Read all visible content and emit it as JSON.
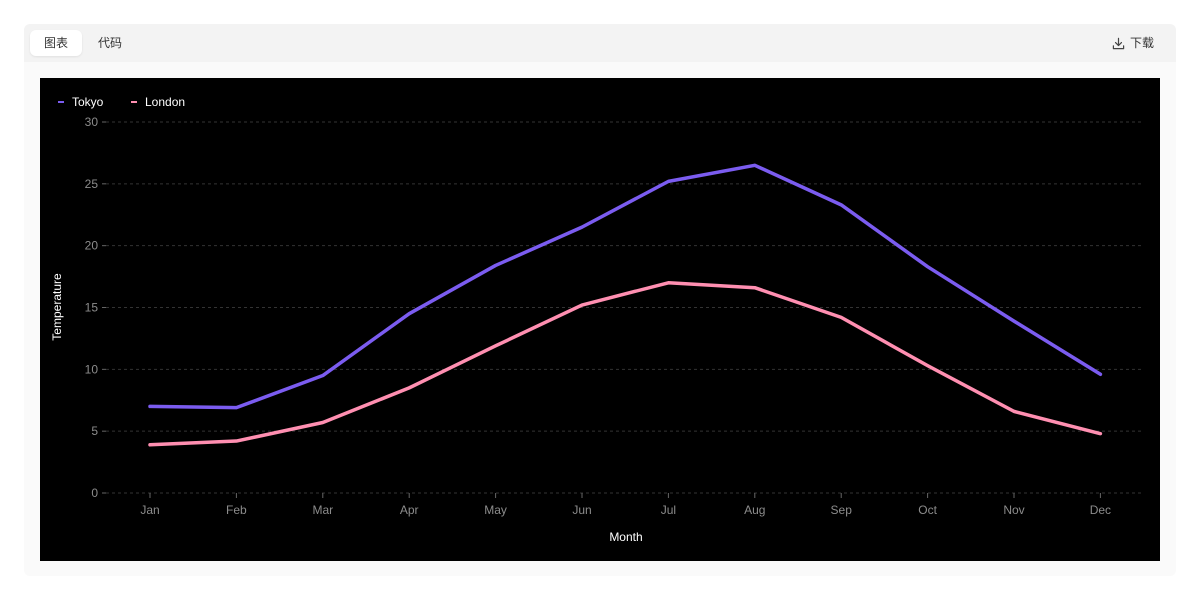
{
  "tabs": [
    {
      "label": "图表",
      "active": true
    },
    {
      "label": "代码",
      "active": false
    }
  ],
  "download": {
    "label": "下载",
    "icon": "download-icon"
  },
  "colors": {
    "background": "#000000",
    "tokyo": "#7b5cf0",
    "london": "#ff8fb1",
    "grid": "#333333",
    "tick_text": "#8c8c8c",
    "axis_title": "#ffffff"
  },
  "chart_data": {
    "type": "line",
    "xlabel": "Month",
    "ylabel": "Temperature",
    "categories": [
      "Jan",
      "Feb",
      "Mar",
      "Apr",
      "May",
      "Jun",
      "Jul",
      "Aug",
      "Sep",
      "Oct",
      "Nov",
      "Dec"
    ],
    "ylim": [
      0,
      30
    ],
    "yticks": [
      0,
      5,
      10,
      15,
      20,
      25,
      30
    ],
    "grid": true,
    "legend_position": "top-left",
    "series": [
      {
        "name": "Tokyo",
        "color": "#7b5cf0",
        "values": [
          7.0,
          6.9,
          9.5,
          14.5,
          18.4,
          21.5,
          25.2,
          26.5,
          23.3,
          18.3,
          13.9,
          9.6
        ]
      },
      {
        "name": "London",
        "color": "#ff8fb1",
        "values": [
          3.9,
          4.2,
          5.7,
          8.5,
          11.9,
          15.2,
          17.0,
          16.6,
          14.2,
          10.3,
          6.6,
          4.8
        ]
      }
    ]
  }
}
